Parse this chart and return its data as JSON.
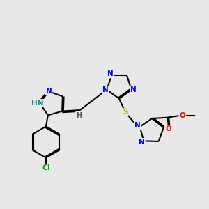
{
  "bg_color": "#e8e8e8",
  "bond_color": "#000000",
  "bond_width": 1.5,
  "atom_colors": {
    "N": "#0000ff",
    "NH": "#009090",
    "Cl": "#00aa00",
    "S": "#bbaa00",
    "O": "#ff0000",
    "C": "#000000",
    "H": "#555555"
  },
  "font_size": 7.5,
  "fig_width": 3.0,
  "fig_height": 3.0,
  "dpi": 100
}
